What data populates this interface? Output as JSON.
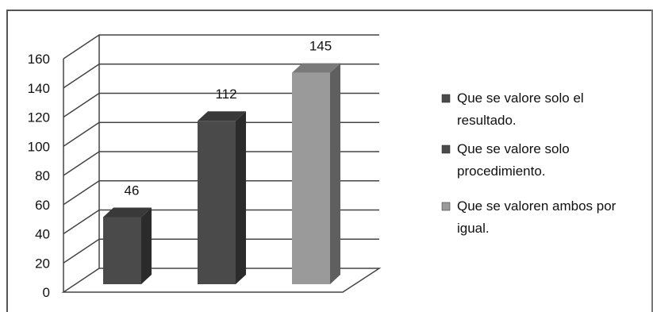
{
  "chart_data": {
    "type": "bar",
    "categories": [
      "Que se valore solo el resultado.",
      "Que se valore solo procedimiento.",
      "Que se valoren ambos por igual."
    ],
    "values": [
      46,
      112,
      145
    ],
    "data_labels": [
      "46",
      "112",
      "145"
    ],
    "title": "",
    "xlabel": "",
    "ylabel": "",
    "ylim": [
      0,
      160
    ],
    "y_ticks": [
      "0",
      "20",
      "40",
      "60",
      "80",
      "100",
      "120",
      "140",
      "160"
    ],
    "grid": true,
    "three_d": true,
    "legend_position": "right",
    "legend": [
      {
        "lines": [
          "Que se valore solo el",
          "resultado."
        ],
        "color": "#4a4a4a"
      },
      {
        "lines": [
          "Que se valore solo",
          "procedimiento."
        ],
        "color": "#4a4a4a"
      },
      {
        "lines": [
          "Que se valoren ambos por",
          "igual."
        ],
        "color": "#9a9a9a"
      }
    ],
    "colors": {
      "bar_front": [
        "#4a4a4a",
        "#4a4a4a",
        "#9a9a9a"
      ],
      "bar_side": [
        "#2b2b2b",
        "#2b2b2b",
        "#5f5f5f"
      ],
      "bar_top": [
        "#393939",
        "#393939",
        "#7a7a7a"
      ],
      "grid": "#444444"
    }
  }
}
